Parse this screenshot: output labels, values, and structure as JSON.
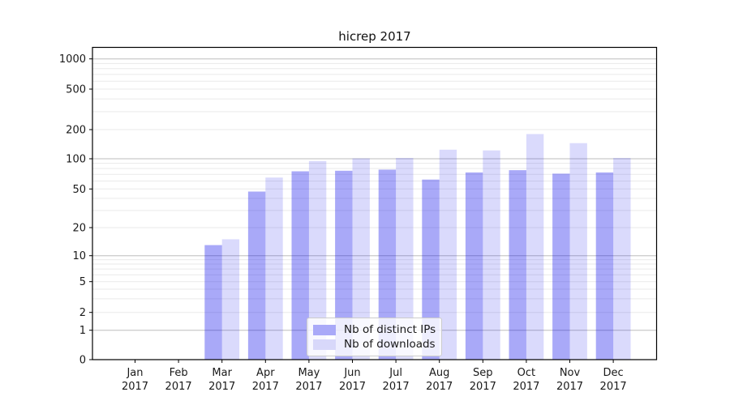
{
  "title": "hicrep 2017",
  "legend": {
    "items": [
      {
        "label": "Nb of distinct IPs",
        "swatch_color": "#a9a9f8"
      },
      {
        "label": "Nb of downloads",
        "swatch_color": "#d8d8fa"
      }
    ]
  },
  "colors": {
    "bar_distinct_ips": "rgba(10,10,235,0.35)",
    "bar_downloads": "rgba(10,10,235,0.15)",
    "grid_major": "#bdbdbd",
    "grid_minor": "#eaeaea",
    "spine": "#000000",
    "tick_text": "#191919"
  },
  "y_axis": {
    "tick_labels": [
      "0",
      "1",
      "2",
      "5",
      "10",
      "20",
      "50",
      "100",
      "200",
      "500",
      "1000"
    ],
    "tick_values": [
      0,
      1,
      2,
      5,
      10,
      20,
      50,
      100,
      200,
      500,
      1000
    ]
  },
  "x_axis": {
    "months": [
      "Jan",
      "Feb",
      "Mar",
      "Apr",
      "May",
      "Jun",
      "Jul",
      "Aug",
      "Sep",
      "Oct",
      "Nov",
      "Dec"
    ],
    "year": "2017"
  },
  "chart_data": {
    "type": "bar",
    "title": "hicrep 2017",
    "xlabel": "",
    "ylabel": "",
    "yscale": "symlog",
    "ylim": [
      0,
      1200
    ],
    "grid": "horizontal",
    "legend_position": "lower-center",
    "categories": [
      "Jan 2017",
      "Feb 2017",
      "Mar 2017",
      "Apr 2017",
      "May 2017",
      "Jun 2017",
      "Jul 2017",
      "Aug 2017",
      "Sep 2017",
      "Oct 2017",
      "Nov 2017",
      "Dec 2017"
    ],
    "series": [
      {
        "name": "Nb of distinct IPs",
        "values": [
          0,
          0,
          13,
          47,
          75,
          76,
          78,
          62,
          73,
          77,
          71,
          73
        ]
      },
      {
        "name": "Nb of downloads",
        "values": [
          0,
          0,
          15,
          65,
          95,
          101,
          102,
          124,
          122,
          180,
          145,
          102
        ]
      }
    ]
  }
}
